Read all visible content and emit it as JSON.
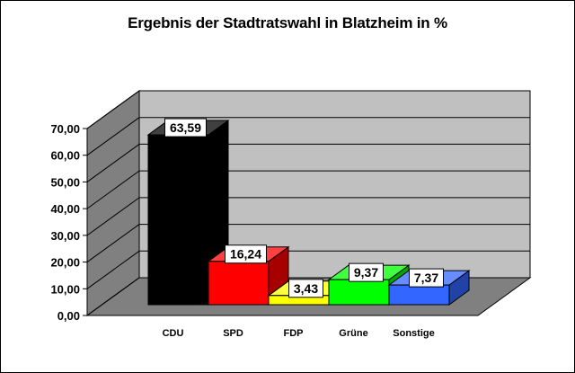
{
  "chart_data": {
    "type": "bar",
    "title": "Ergebnis der Stadtratswahl in Blatzheim in %",
    "categories": [
      "CDU",
      "SPD",
      "FDP",
      "Grüne",
      "Sonstige"
    ],
    "values": [
      63.59,
      16.24,
      3.43,
      9.37,
      7.37
    ],
    "data_labels": [
      "63,59",
      "16,24",
      "3,43",
      "9,37",
      "7,37"
    ],
    "colors": [
      "#000000",
      "#ff0000",
      "#ffff00",
      "#00ff00",
      "#3366ff"
    ],
    "ylim": [
      0,
      70
    ],
    "yticks": [
      "0,00",
      "10,00",
      "20,00",
      "30,00",
      "40,00",
      "50,00",
      "60,00",
      "70,00"
    ],
    "three_d": true,
    "grid": true,
    "legend": "none",
    "xlabel": "",
    "ylabel": ""
  }
}
